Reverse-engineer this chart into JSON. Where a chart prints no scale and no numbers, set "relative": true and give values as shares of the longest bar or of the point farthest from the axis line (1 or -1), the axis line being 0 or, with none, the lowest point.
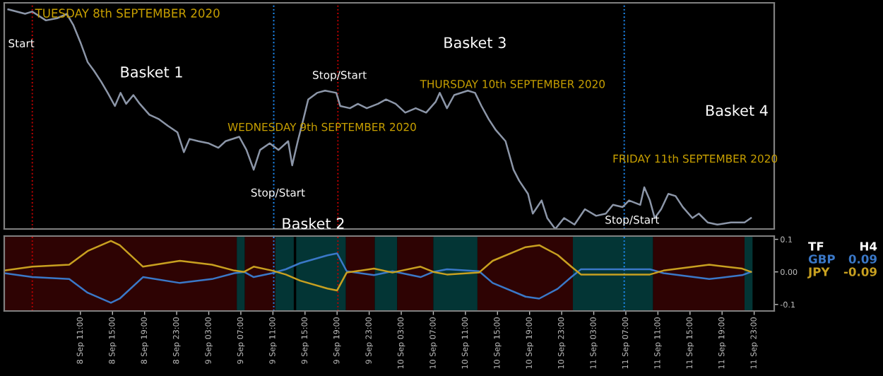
{
  "chart_data": [
    {
      "type": "line",
      "relative": true,
      "xlim": [
        "2020-09-08T01:30",
        "2020-09-12T01:30"
      ],
      "grid": false,
      "annotations": [
        "TUESDAY 8th SEPTEMBER 2020",
        "Start",
        "Basket 1",
        "Stop/Start",
        "WEDNESDAY 9th SEPTEMBER 2020",
        "Stop/Start",
        "Basket 2",
        "Basket 3",
        "THURSDAY 10th SEPTEMBER 2020",
        "Basket 4",
        "FRIDAY 11th SEPTEMBER 2020",
        "Stop/Start"
      ],
      "ref_lines": [
        {
          "axis": "x",
          "value": "2020-09-08T05:00",
          "color": "#c00000",
          "line_style": "dotted"
        },
        {
          "axis": "x",
          "value": "2020-09-09T11:06",
          "color": "#1e90ff",
          "line_style": "dotted"
        },
        {
          "axis": "x",
          "value": "2020-09-09T19:06",
          "color": "#c00000",
          "line_style": "dotted"
        },
        {
          "axis": "x",
          "value": "2020-09-11T06:48",
          "color": "#1e90ff",
          "line_style": "dotted"
        }
      ],
      "series": [
        {
          "color": "#8c96a8",
          "x": [
            "2020-09-08T02:00",
            "2020-09-08T04:06",
            "2020-09-08T05:00",
            "2020-09-08T06:42",
            "2020-09-08T08:06",
            "2020-09-08T09:18",
            "2020-09-08T10:06",
            "2020-09-08T11:00",
            "2020-09-08T11:54",
            "2020-09-08T12:42",
            "2020-09-08T13:36",
            "2020-09-08T14:24",
            "2020-09-08T15:18",
            "2020-09-08T16:00",
            "2020-09-08T16:42",
            "2020-09-08T17:36",
            "2020-09-08T18:24",
            "2020-09-08T19:36",
            "2020-09-08T20:48",
            "2020-09-08T21:54",
            "2020-09-08T23:06",
            "2020-09-08T23:54",
            "2020-09-09T00:36",
            "2020-09-09T01:42",
            "2020-09-09T03:00",
            "2020-09-09T04:12",
            "2020-09-09T05:06",
            "2020-09-09T06:48",
            "2020-09-09T07:42",
            "2020-09-09T08:36",
            "2020-09-09T09:24",
            "2020-09-09T10:36",
            "2020-09-09T11:42",
            "2020-09-09T12:54",
            "2020-09-09T13:24",
            "2020-09-09T14:06",
            "2020-09-09T14:48",
            "2020-09-09T15:24",
            "2020-09-09T16:30",
            "2020-09-09T17:30",
            "2020-09-09T18:54",
            "2020-09-09T19:24",
            "2020-09-09T20:36",
            "2020-09-09T21:36",
            "2020-09-09T22:42",
            "2020-09-10T00:06",
            "2020-09-10T01:06",
            "2020-09-10T02:18",
            "2020-09-10T03:30",
            "2020-09-10T04:48",
            "2020-09-10T06:06",
            "2020-09-10T07:18",
            "2020-09-10T07:48",
            "2020-09-10T08:42",
            "2020-09-10T09:36",
            "2020-09-10T11:18",
            "2020-09-10T12:12",
            "2020-09-10T13:00",
            "2020-09-10T13:54",
            "2020-09-10T14:48",
            "2020-09-10T16:00",
            "2020-09-10T17:00",
            "2020-09-10T17:42",
            "2020-09-10T18:48",
            "2020-09-10T19:24",
            "2020-09-10T20:30",
            "2020-09-10T21:12",
            "2020-09-10T22:12",
            "2020-09-10T23:18",
            "2020-09-11T00:36",
            "2020-09-11T01:54",
            "2020-09-11T03:18",
            "2020-09-11T04:30",
            "2020-09-11T05:24",
            "2020-09-11T06:36",
            "2020-09-11T07:24",
            "2020-09-11T08:48",
            "2020-09-11T09:18",
            "2020-09-11T10:00",
            "2020-09-11T10:36",
            "2020-09-11T11:24",
            "2020-09-11T12:18",
            "2020-09-11T13:12",
            "2020-09-11T14:06",
            "2020-09-11T15:18",
            "2020-09-11T16:06",
            "2020-09-11T17:12",
            "2020-09-11T18:24",
            "2020-09-11T20:06",
            "2020-09-11T21:48",
            "2020-09-11T22:36"
          ],
          "values": [
            1.0,
            0.98,
            0.99,
            0.95,
            0.96,
            0.98,
            0.93,
            0.85,
            0.76,
            0.72,
            0.67,
            0.62,
            0.56,
            0.62,
            0.57,
            0.61,
            0.57,
            0.52,
            0.5,
            0.47,
            0.44,
            0.35,
            0.41,
            0.4,
            0.39,
            0.37,
            0.4,
            0.42,
            0.36,
            0.27,
            0.36,
            0.39,
            0.36,
            0.4,
            0.29,
            0.4,
            0.5,
            0.59,
            0.62,
            0.63,
            0.62,
            0.56,
            0.55,
            0.57,
            0.55,
            0.57,
            0.59,
            0.57,
            0.53,
            0.55,
            0.53,
            0.58,
            0.62,
            0.55,
            0.61,
            0.63,
            0.62,
            0.56,
            0.5,
            0.45,
            0.4,
            0.27,
            0.22,
            0.16,
            0.07,
            0.13,
            0.05,
            0.0,
            0.05,
            0.02,
            0.09,
            0.06,
            0.07,
            0.11,
            0.1,
            0.13,
            0.11,
            0.19,
            0.13,
            0.05,
            0.09,
            0.16,
            0.15,
            0.1,
            0.05,
            0.07,
            0.03,
            0.02,
            0.03,
            0.03,
            0.05
          ]
        }
      ]
    },
    {
      "type": "line",
      "xlim": [
        "2020-09-08T01:30",
        "2020-09-12T01:30"
      ],
      "ylim": [
        -0.12,
        0.11
      ],
      "yticks": [
        0.1,
        {
          "value": 0,
          "label": "0.00"
        },
        -0.1
      ],
      "grid": false,
      "legend": "right",
      "xticks": [
        {
          "value": "2020-09-08T11:00",
          "label": "8 Sep 11:00"
        },
        {
          "value": "2020-09-08T15:00",
          "label": "8 Sep 15:00"
        },
        {
          "value": "2020-09-08T19:00",
          "label": "8 Sep 19:00"
        },
        {
          "value": "2020-09-08T23:00",
          "label": "8 Sep 23:00"
        },
        {
          "value": "2020-09-09T03:00",
          "label": "9 Sep 03:00"
        },
        {
          "value": "2020-09-09T07:00",
          "label": "9 Sep 07:00"
        },
        {
          "value": "2020-09-09T11:00",
          "label": "9 Sep 11:00"
        },
        {
          "value": "2020-09-09T15:00",
          "label": "9 Sep 15:00"
        },
        {
          "value": "2020-09-09T19:00",
          "label": "9 Sep 19:00"
        },
        {
          "value": "2020-09-09T23:00",
          "label": "9 Sep 23:00"
        },
        {
          "value": "2020-09-10T03:00",
          "label": "10 Sep 03:00"
        },
        {
          "value": "2020-09-10T07:00",
          "label": "10 Sep 07:00"
        },
        {
          "value": "2020-09-10T11:00",
          "label": "10 Sep 11:00"
        },
        {
          "value": "2020-09-10T15:00",
          "label": "10 Sep 15:00"
        },
        {
          "value": "2020-09-10T19:00",
          "label": "10 Sep 19:00"
        },
        {
          "value": "2020-09-10T23:00",
          "label": "10 Sep 23:00"
        },
        {
          "value": "2020-09-11T03:00",
          "label": "11 Sep 03:00"
        },
        {
          "value": "2020-09-11T07:00",
          "label": "11 Sep 07:00"
        },
        {
          "value": "2020-09-11T11:00",
          "label": "11 Sep 11:00"
        },
        {
          "value": "2020-09-11T15:00",
          "label": "11 Sep 15:00"
        },
        {
          "value": "2020-09-11T19:00",
          "label": "11 Sep 19:00"
        },
        {
          "value": "2020-09-11T23:00",
          "label": "11 Sep 23:00"
        }
      ],
      "annotations": [
        "TF",
        "H4",
        "0.09",
        "-0.09"
      ],
      "bands": [
        {
          "axis": "x",
          "from": "2020-09-08T01:30",
          "to": "2020-09-09T06:30",
          "color": "#2e0303"
        },
        {
          "axis": "x",
          "from": "2020-09-09T06:30",
          "to": "2020-09-09T07:30",
          "color": "#033535"
        },
        {
          "axis": "x",
          "from": "2020-09-09T07:30",
          "to": "2020-09-09T11:18",
          "color": "#2e0303"
        },
        {
          "axis": "x",
          "from": "2020-09-09T11:18",
          "to": "2020-09-09T13:36",
          "color": "#033535"
        },
        {
          "axis": "x",
          "from": "2020-09-09T13:54",
          "to": "2020-09-09T20:06",
          "color": "#033535"
        },
        {
          "axis": "x",
          "from": "2020-09-09T20:06",
          "to": "2020-09-09T23:42",
          "color": "#2e0303"
        },
        {
          "axis": "x",
          "from": "2020-09-09T23:42",
          "to": "2020-09-10T02:30",
          "color": "#033535"
        },
        {
          "axis": "x",
          "from": "2020-09-10T02:30",
          "to": "2020-09-10T07:00",
          "color": "#2e0303"
        },
        {
          "axis": "x",
          "from": "2020-09-10T07:00",
          "to": "2020-09-10T12:30",
          "color": "#033535"
        },
        {
          "axis": "x",
          "from": "2020-09-10T12:30",
          "to": "2020-09-11T00:24",
          "color": "#2e0303"
        },
        {
          "axis": "x",
          "from": "2020-09-11T00:24",
          "to": "2020-09-11T10:24",
          "color": "#033535"
        },
        {
          "axis": "x",
          "from": "2020-09-11T10:24",
          "to": "2020-09-11T21:48",
          "color": "#2e0303"
        },
        {
          "axis": "x",
          "from": "2020-09-11T21:48",
          "to": "2020-09-11T22:48",
          "color": "#033535"
        }
      ],
      "ref_lines": [
        {
          "axis": "x",
          "value": "2020-09-08T05:00",
          "color": "#c00000",
          "line_style": "dotted"
        },
        {
          "axis": "x",
          "value": "2020-09-09T11:06",
          "color": "#1e90ff",
          "line_style": "dotted"
        },
        {
          "axis": "x",
          "value": "2020-09-09T19:06",
          "color": "#c00000",
          "line_style": "dotted"
        },
        {
          "axis": "x",
          "value": "2020-09-11T06:48",
          "color": "#1e90ff",
          "line_style": "dotted"
        }
      ],
      "series": [
        {
          "name": "GBP",
          "color": "#3a78c8",
          "x": [
            "2020-09-08T01:30",
            "2020-09-08T05:00",
            "2020-09-08T09:36",
            "2020-09-08T11:54",
            "2020-09-08T14:48",
            "2020-09-08T15:54",
            "2020-09-08T18:48",
            "2020-09-08T23:24",
            "2020-09-09T03:24",
            "2020-09-09T06:12",
            "2020-09-09T07:24",
            "2020-09-09T08:36",
            "2020-09-09T10:54",
            "2020-09-09T12:36",
            "2020-09-09T14:24",
            "2020-09-09T17:48",
            "2020-09-09T19:00",
            "2020-09-09T20:12",
            "2020-09-09T23:36",
            "2020-09-10T01:54",
            "2020-09-10T05:24",
            "2020-09-10T07:00",
            "2020-09-10T08:42",
            "2020-09-10T12:42",
            "2020-09-10T14:24",
            "2020-09-10T18:30",
            "2020-09-10T20:12",
            "2020-09-10T22:30",
            "2020-09-11T00:12",
            "2020-09-11T01:24",
            "2020-09-11T06:00",
            "2020-09-11T10:00",
            "2020-09-11T11:42",
            "2020-09-11T17:24",
            "2020-09-11T21:30",
            "2020-09-11T22:36"
          ],
          "values": [
            -0.004,
            -0.016,
            -0.022,
            -0.064,
            -0.095,
            -0.082,
            -0.016,
            -0.034,
            -0.022,
            -0.004,
            0.0,
            -0.016,
            -0.004,
            0.008,
            0.027,
            0.051,
            0.057,
            0.002,
            -0.01,
            0.002,
            -0.016,
            0.0,
            0.008,
            0.002,
            -0.034,
            -0.076,
            -0.082,
            -0.052,
            -0.016,
            0.008,
            0.008,
            0.008,
            -0.004,
            -0.022,
            -0.01,
            0.0
          ]
        },
        {
          "name": "JPY",
          "color": "#c8a020",
          "x": [
            "2020-09-08T01:30",
            "2020-09-08T05:00",
            "2020-09-08T09:36",
            "2020-09-08T11:54",
            "2020-09-08T14:48",
            "2020-09-08T15:54",
            "2020-09-08T18:48",
            "2020-09-08T23:24",
            "2020-09-09T03:24",
            "2020-09-09T06:12",
            "2020-09-09T07:24",
            "2020-09-09T08:36",
            "2020-09-09T10:54",
            "2020-09-09T12:36",
            "2020-09-09T14:24",
            "2020-09-09T17:48",
            "2020-09-09T19:00",
            "2020-09-09T20:12",
            "2020-09-09T23:36",
            "2020-09-10T01:54",
            "2020-09-10T05:24",
            "2020-09-10T07:00",
            "2020-09-10T08:42",
            "2020-09-10T12:42",
            "2020-09-10T14:24",
            "2020-09-10T18:30",
            "2020-09-10T20:12",
            "2020-09-10T22:30",
            "2020-09-11T00:12",
            "2020-09-11T01:24",
            "2020-09-11T06:00",
            "2020-09-11T10:00",
            "2020-09-11T11:42",
            "2020-09-11T17:24",
            "2020-09-11T21:30",
            "2020-09-11T22:36"
          ],
          "values": [
            0.004,
            0.016,
            0.022,
            0.064,
            0.095,
            0.082,
            0.016,
            0.034,
            0.022,
            0.004,
            0.0,
            0.016,
            0.004,
            -0.008,
            -0.027,
            -0.051,
            -0.057,
            -0.002,
            0.01,
            -0.002,
            0.016,
            0.0,
            -0.008,
            -0.002,
            0.034,
            0.076,
            0.082,
            0.052,
            0.016,
            -0.008,
            -0.008,
            -0.008,
            0.004,
            0.022,
            0.01,
            0.0
          ]
        }
      ]
    }
  ]
}
